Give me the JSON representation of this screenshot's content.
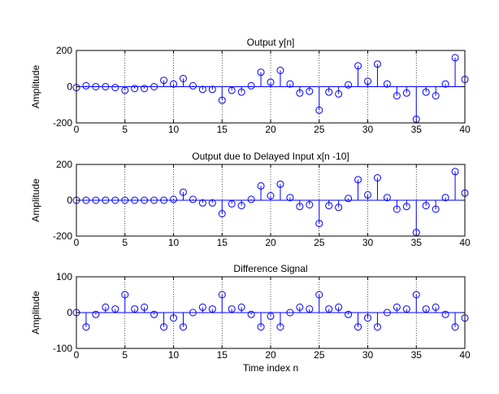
{
  "chart_data": [
    {
      "type": "stem",
      "title": "Output y[n]",
      "xlabel": "",
      "ylabel": "Amplitude",
      "xlim": [
        0,
        40
      ],
      "ylim": [
        -200,
        200
      ],
      "xticks": [
        0,
        5,
        10,
        15,
        20,
        25,
        30,
        35,
        40
      ],
      "yticks": [
        -200,
        0,
        200
      ],
      "grid": "vertical",
      "marker_color": "#0000ff",
      "x": [
        0,
        1,
        2,
        3,
        4,
        5,
        6,
        7,
        8,
        9,
        10,
        11,
        12,
        13,
        14,
        15,
        16,
        17,
        18,
        19,
        20,
        21,
        22,
        23,
        24,
        25,
        26,
        27,
        28,
        29,
        30,
        31,
        32,
        33,
        34,
        35,
        36,
        37,
        38,
        39,
        40
      ],
      "values": [
        -5,
        5,
        0,
        0,
        -5,
        -20,
        -10,
        -10,
        0,
        35,
        15,
        45,
        5,
        -15,
        -15,
        -75,
        -20,
        -30,
        5,
        80,
        25,
        90,
        15,
        -35,
        -25,
        -130,
        -30,
        -40,
        10,
        115,
        30,
        125,
        15,
        -50,
        -35,
        -180,
        -30,
        -50,
        15,
        160,
        40
      ]
    },
    {
      "type": "stem",
      "title": "Output due to Delayed Input x[n -10]",
      "xlabel": "",
      "ylabel": "Amplitude",
      "xlim": [
        0,
        40
      ],
      "ylim": [
        -200,
        200
      ],
      "xticks": [
        0,
        5,
        10,
        15,
        20,
        25,
        30,
        35,
        40
      ],
      "yticks": [
        -200,
        0,
        200
      ],
      "grid": "vertical",
      "marker_color": "#0000ff",
      "x": [
        0,
        1,
        2,
        3,
        4,
        5,
        6,
        7,
        8,
        9,
        10,
        11,
        12,
        13,
        14,
        15,
        16,
        17,
        18,
        19,
        20,
        21,
        22,
        23,
        24,
        25,
        26,
        27,
        28,
        29,
        30,
        31,
        32,
        33,
        34,
        35,
        36,
        37,
        38,
        39,
        40
      ],
      "values": [
        0,
        0,
        0,
        0,
        0,
        0,
        0,
        0,
        0,
        0,
        5,
        45,
        5,
        -15,
        -15,
        -75,
        -20,
        -30,
        5,
        80,
        25,
        90,
        15,
        -35,
        -25,
        -130,
        -30,
        -40,
        10,
        115,
        30,
        125,
        15,
        -50,
        -35,
        -180,
        -30,
        -50,
        15,
        160,
        40
      ]
    },
    {
      "type": "stem",
      "title": "Difference Signal",
      "xlabel": "Time index n",
      "ylabel": "Amplitude",
      "xlim": [
        0,
        40
      ],
      "ylim": [
        -100,
        100
      ],
      "xticks": [
        0,
        5,
        10,
        15,
        20,
        25,
        30,
        35,
        40
      ],
      "yticks": [
        -100,
        0,
        100
      ],
      "grid": "vertical",
      "marker_color": "#0000ff",
      "x": [
        0,
        1,
        2,
        3,
        4,
        5,
        6,
        7,
        8,
        9,
        10,
        11,
        12,
        13,
        14,
        15,
        16,
        17,
        18,
        19,
        20,
        21,
        22,
        23,
        24,
        25,
        26,
        27,
        28,
        29,
        30,
        31,
        32,
        33,
        34,
        35,
        36,
        37,
        38,
        39,
        40
      ],
      "values": [
        0,
        -40,
        -5,
        15,
        10,
        50,
        10,
        15,
        -5,
        -40,
        -15,
        -40,
        0,
        15,
        10,
        50,
        10,
        15,
        -5,
        -40,
        -10,
        -40,
        0,
        15,
        10,
        50,
        10,
        15,
        -5,
        -40,
        -15,
        -40,
        0,
        15,
        10,
        50,
        10,
        15,
        -5,
        -40,
        -15
      ]
    }
  ]
}
